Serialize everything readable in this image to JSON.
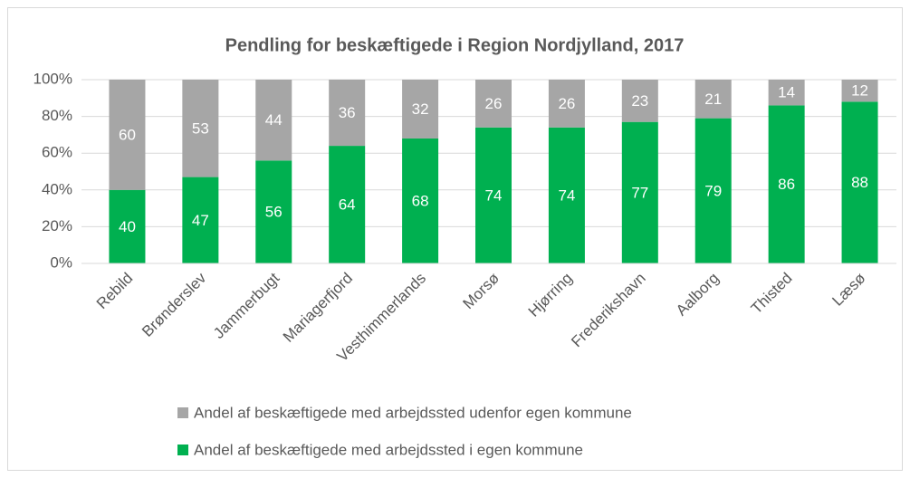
{
  "chart_data": {
    "type": "bar",
    "stacked": true,
    "title": "Pendling for beskæftigede i Region Nordjylland, 2017",
    "categories": [
      "Rebild",
      "Brønderslev",
      "Jammerbugt",
      "Mariagerfjord",
      "Vesthimmerlands",
      "Morsø",
      "Hjørring",
      "Frederikshavn",
      "Aalborg",
      "Thisted",
      "Læsø"
    ],
    "series": [
      {
        "name": "Andel af beskæftigede med arbejdssted udenfor egen kommune",
        "color": "#a6a6a6",
        "values": [
          60,
          53,
          44,
          36,
          32,
          26,
          26,
          23,
          21,
          14,
          12
        ]
      },
      {
        "name": "Andel af beskæftigede med arbejdssted i egen kommune",
        "color": "#00b050",
        "values": [
          40,
          47,
          56,
          64,
          68,
          74,
          74,
          77,
          79,
          86,
          88
        ]
      }
    ],
    "ylim": [
      0,
      100
    ],
    "yticks": [
      {
        "value": 0,
        "label": "0%"
      },
      {
        "value": 20,
        "label": "20%"
      },
      {
        "value": 40,
        "label": "40%"
      },
      {
        "value": 60,
        "label": "60%"
      },
      {
        "value": 80,
        "label": "80%"
      },
      {
        "value": 100,
        "label": "100%"
      }
    ],
    "grid": true,
    "legend": "bottom"
  }
}
